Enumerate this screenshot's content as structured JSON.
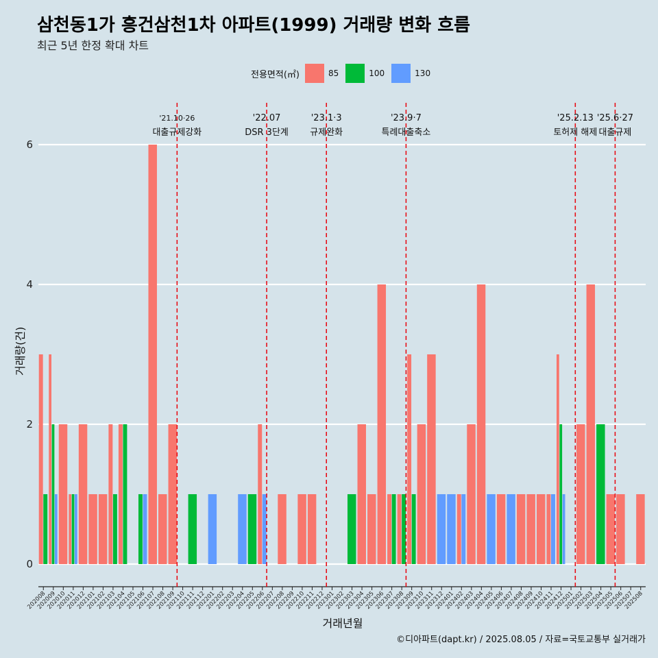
{
  "title": "삼천동1가 흥건삼천1차 아파트(1999) 거래량 변화 흐름",
  "subtitle": "최근 5년 한정 확대 차트",
  "caption": "©디아파트(dapt.kr) / 2025.08.05 / 자료=국토교통부 실거래가",
  "legend": {
    "title": "전용면적(㎡)",
    "items": [
      {
        "label": "85",
        "color": "#f8766d"
      },
      {
        "label": "100",
        "color": "#00ba38"
      },
      {
        "label": "130",
        "color": "#619cff"
      }
    ]
  },
  "chart_data": {
    "type": "bar",
    "xlabel": "거래년월",
    "ylabel": "거래량(건)",
    "ylim": [
      0,
      6
    ],
    "yticks": [
      0,
      2,
      4,
      6
    ],
    "grid": "horizontal",
    "legend_position": "top",
    "categories": [
      "202008",
      "202009",
      "202010",
      "202011",
      "202012",
      "202101",
      "202102",
      "202103",
      "202104",
      "202105",
      "202106",
      "202107",
      "202108",
      "202109",
      "202110",
      "202111",
      "202112",
      "202201",
      "202202",
      "202203",
      "202204",
      "202205",
      "202206",
      "202207",
      "202208",
      "202209",
      "202210",
      "202211",
      "202212",
      "202301",
      "202302",
      "202303",
      "202304",
      "202305",
      "202306",
      "202307",
      "202308",
      "202309",
      "202310",
      "202311",
      "202312",
      "202401",
      "202402",
      "202403",
      "202404",
      "202405",
      "202406",
      "202407",
      "202408",
      "202409",
      "202410",
      "202411",
      "202412",
      "202501",
      "202502",
      "202503",
      "202504",
      "202505",
      "202506",
      "202507",
      "202508"
    ],
    "series": [
      {
        "name": "85",
        "color": "#f8766d",
        "values": [
          3,
          3,
          2,
          1,
          2,
          1,
          1,
          2,
          2,
          0,
          0,
          6,
          1,
          2,
          0,
          0,
          0,
          0,
          0,
          0,
          0,
          0,
          2,
          0,
          1,
          0,
          1,
          1,
          0,
          0,
          0,
          0,
          2,
          1,
          4,
          1,
          1,
          3,
          2,
          3,
          0,
          0,
          1,
          2,
          4,
          0,
          1,
          0,
          1,
          1,
          1,
          1,
          3,
          0,
          2,
          4,
          0,
          1,
          1,
          0,
          1
        ]
      },
      {
        "name": "100",
        "color": "#00ba38",
        "values": [
          1,
          2,
          0,
          1,
          0,
          0,
          0,
          1,
          2,
          0,
          1,
          0,
          0,
          0,
          0,
          1,
          0,
          0,
          0,
          0,
          0,
          1,
          0,
          0,
          0,
          0,
          0,
          0,
          0,
          0,
          0,
          1,
          0,
          0,
          0,
          1,
          1,
          1,
          0,
          0,
          0,
          0,
          0,
          0,
          0,
          0,
          0,
          0,
          0,
          0,
          0,
          0,
          2,
          0,
          0,
          0,
          2,
          0,
          0,
          0,
          0
        ]
      },
      {
        "name": "130",
        "color": "#619cff",
        "values": [
          0,
          1,
          0,
          1,
          0,
          0,
          0,
          0,
          0,
          0,
          1,
          0,
          0,
          0,
          0,
          0,
          0,
          1,
          0,
          0,
          1,
          0,
          1,
          0,
          0,
          0,
          0,
          0,
          0,
          0,
          0,
          0,
          0,
          0,
          0,
          0,
          0,
          0,
          0,
          0,
          1,
          1,
          1,
          0,
          0,
          1,
          0,
          1,
          0,
          0,
          0,
          1,
          1,
          0,
          0,
          0,
          0,
          0,
          0,
          0,
          0
        ]
      }
    ],
    "annotations": [
      {
        "at": "202110",
        "date": "'21.10·26",
        "text": "대출규제강화"
      },
      {
        "at": "202207",
        "date": "'22.07",
        "text": "DSR 3단계"
      },
      {
        "at": "202301",
        "date": "'23.1·3",
        "text": "규제완화"
      },
      {
        "at": "202309",
        "date": "'23.9·7",
        "text": "특례대출축소"
      },
      {
        "at": "202502",
        "date": "'25.2.13",
        "text": "토허제 해제"
      },
      {
        "at": "202506",
        "date": "'25.6·27",
        "text": "대출규제"
      }
    ]
  }
}
